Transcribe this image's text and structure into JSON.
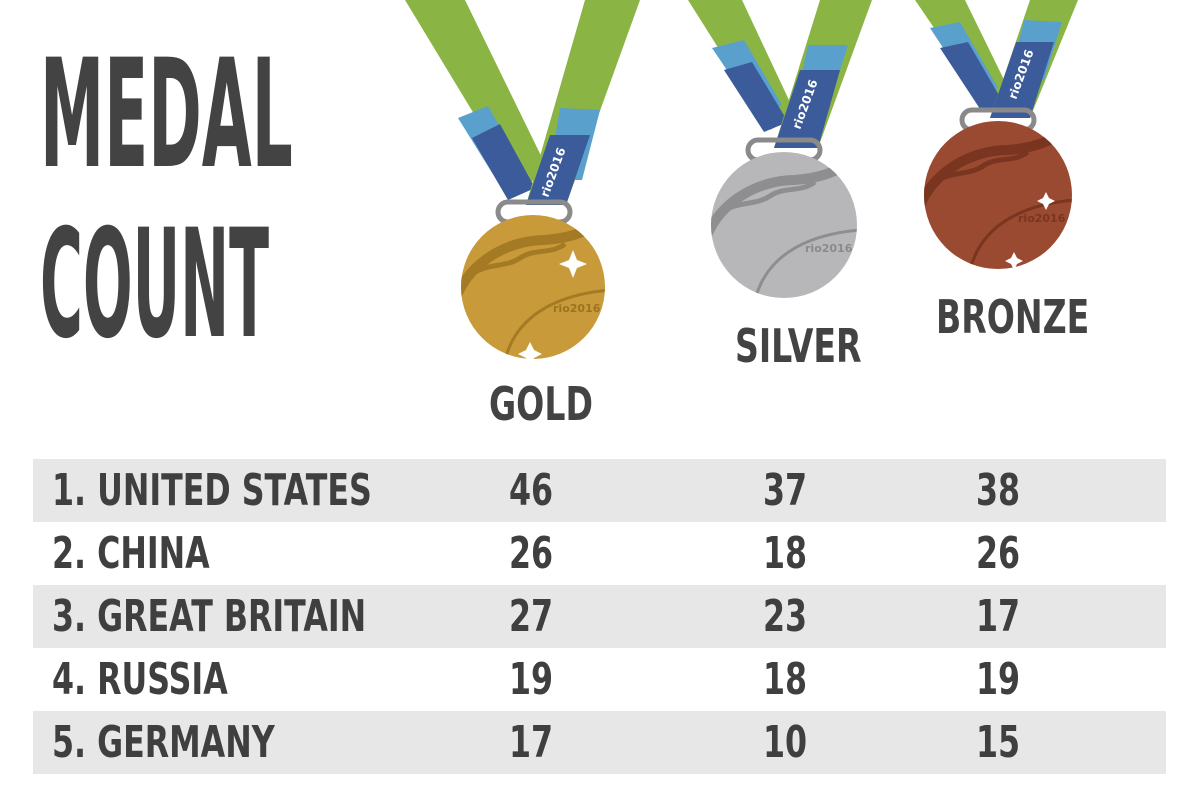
{
  "title": {
    "line1": "MEDAL",
    "line2": "COUNT"
  },
  "medals": {
    "gold": {
      "label": "GOLD",
      "color": "#c89a3a",
      "engraving": "rio2016"
    },
    "silver": {
      "label": "SILVER",
      "color": "#b7b7b9",
      "engraving": "rio2016"
    },
    "bronze": {
      "label": "BRONZE",
      "color": "#9a4a30",
      "engraving": "rio2016"
    },
    "ribbon_text": "rio2016",
    "ribbon_colors": {
      "green": "#8ab544",
      "light_blue": "#5aa0cd",
      "dark_blue": "#3c5b9a"
    }
  },
  "table": {
    "rows": [
      {
        "country": "1. UNITED STATES",
        "gold": "46",
        "silver": "37",
        "bronze": "38"
      },
      {
        "country": "2. CHINA",
        "gold": "26",
        "silver": "18",
        "bronze": "26"
      },
      {
        "country": "3. GREAT BRITAIN",
        "gold": "27",
        "silver": "23",
        "bronze": "17"
      },
      {
        "country": "4. RUSSIA",
        "gold": "19",
        "silver": "18",
        "bronze": "19"
      },
      {
        "country": "5. GERMANY",
        "gold": "17",
        "silver": "10",
        "bronze": "15"
      }
    ]
  }
}
